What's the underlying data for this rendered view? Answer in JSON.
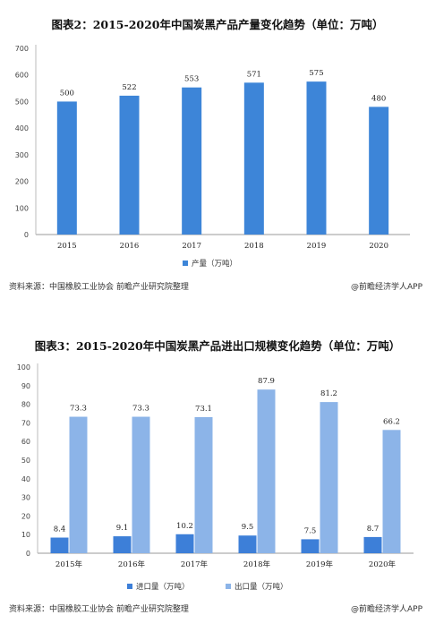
{
  "chart_data": [
    {
      "type": "bar",
      "title": "图表2：2015-2020年中国炭黑产品产量变化趋势（单位：万吨）",
      "categories": [
        "2015",
        "2016",
        "2017",
        "2018",
        "2019",
        "2020"
      ],
      "series": [
        {
          "name": "产量（万吨）",
          "values": [
            500,
            522,
            553,
            571,
            575,
            480
          ],
          "color": "#3d85d8"
        }
      ],
      "ylim": [
        0,
        700
      ],
      "yticks": [
        0,
        100,
        200,
        300,
        400,
        500,
        600,
        700
      ],
      "legend": "bottom-center",
      "grid": false,
      "source": "资料来源：中国橡胶工业协会 前瞻产业研究院整理",
      "brand": "@前瞻经济学人APP"
    },
    {
      "type": "bar",
      "title": "图表3：2015-2020年中国炭黑产品进出口规模变化趋势（单位：万吨）",
      "categories": [
        "2015年",
        "2016年",
        "2017年",
        "2018年",
        "2019年",
        "2020年"
      ],
      "series": [
        {
          "name": "进口量（万吨）",
          "values": [
            8.4,
            9.1,
            10.2,
            9.5,
            7.5,
            8.7
          ],
          "color": "#3d7fd8"
        },
        {
          "name": "出口量（万吨）",
          "values": [
            73.3,
            73.3,
            73.1,
            87.9,
            81.2,
            66.2
          ],
          "color": "#8cb4e8"
        }
      ],
      "ylim": [
        0,
        100
      ],
      "yticks": [
        0,
        10,
        20,
        30,
        40,
        50,
        60,
        70,
        80,
        90,
        100
      ],
      "legend": "bottom-center",
      "grid": false,
      "source": "资料来源：中国橡胶工业协会 前瞻产业研究院整理",
      "brand": "@前瞻经济学人APP"
    }
  ]
}
